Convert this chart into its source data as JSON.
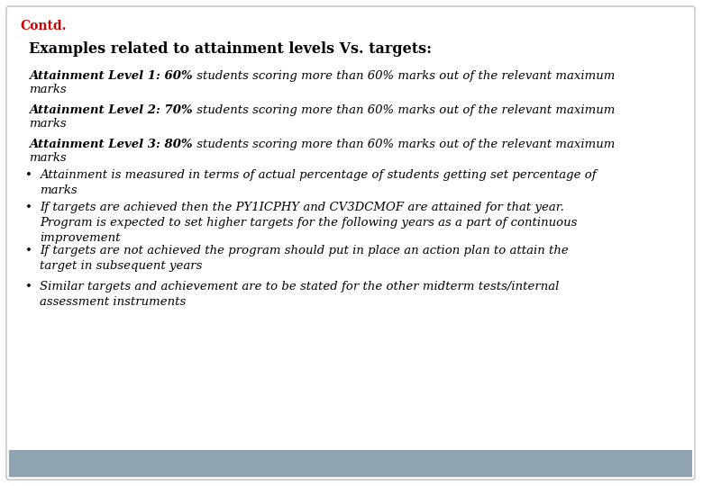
{
  "contd_text": "Contd.",
  "contd_color": "#cc0000",
  "heading": "Examples related to attainment levels Vs. targets:",
  "attainment_lines": [
    {
      "bold_part": "Attainment Level 1: 60%",
      "rest": " students scoring more than 60% marks out of the relevant maximum"
    },
    {
      "bold_part": "Attainment Level 2: 70%",
      "rest": " students scoring more than 60% marks out of the relevant maximum"
    },
    {
      "bold_part": "Attainment Level 3: 80%",
      "rest": " students scoring more than 60% marks out of the relevant maximum"
    }
  ],
  "marks_line": "marks",
  "bullets": [
    "Attainment is measured in terms of actual percentage of students getting set percentage of\nmarks",
    "If targets are achieved then the PY1ICPHY and CV3DCMOF are attained for that year.\nProgram is expected to set higher targets for the following years as a part of continuous\nimprovement",
    "If targets are not achieved the program should put in place an action plan to attain the\ntarget in subsequent years",
    "Similar targets and achievement are to be stated for the other midterm tests/internal\nassessment instruments"
  ],
  "bg_color": "#ffffff",
  "border_color": "#c0c0c0",
  "footer_color": "#8fa4b0",
  "text_color": "#000000",
  "font_size_heading": 11.5,
  "font_size_body": 9.5,
  "font_size_contd": 10,
  "font_size_attainment": 9.5
}
